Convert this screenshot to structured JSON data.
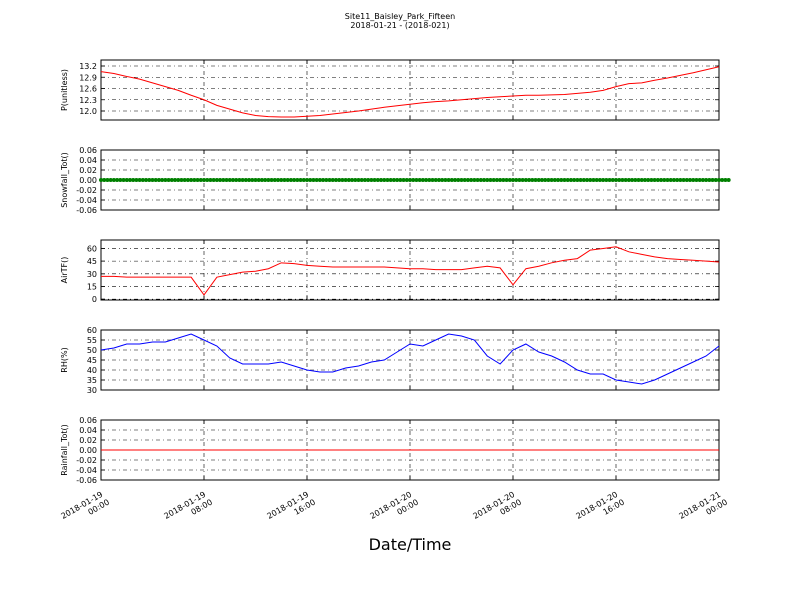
{
  "chart_data": [
    {
      "type": "line",
      "title": "Site11_Baisley_Park_Fifteen",
      "subtitle": "2018-01-21 - (2018-021)",
      "ylabel": "P(unitless)",
      "xlim": [
        "2018-01-19 00:00",
        "2018-01-21 00:00"
      ],
      "xticks": [
        "2018-01-19 00:00",
        "2018-01-19 08:00",
        "2018-01-19 16:00",
        "2018-01-20 00:00",
        "2018-01-20 08:00",
        "2018-01-20 16:00",
        "2018-01-21 00:00"
      ],
      "ylim": [
        11.76,
        13.36
      ],
      "yticks": [
        {
          "value": 12,
          "label": "12.0"
        },
        12.3,
        12.6,
        12.9,
        13.2
      ],
      "grid": true,
      "x": [
        "2018-01-19 00:00",
        "2018-01-19 01:00",
        "2018-01-19 02:00",
        "2018-01-19 03:00",
        "2018-01-19 04:00",
        "2018-01-19 05:00",
        "2018-01-19 06:00",
        "2018-01-19 07:00",
        "2018-01-19 08:00",
        "2018-01-19 09:00",
        "2018-01-19 10:00",
        "2018-01-19 11:00",
        "2018-01-19 12:00",
        "2018-01-19 13:00",
        "2018-01-19 14:00",
        "2018-01-19 15:00",
        "2018-01-19 16:00",
        "2018-01-19 17:00",
        "2018-01-19 18:00",
        "2018-01-19 19:00",
        "2018-01-19 20:00",
        "2018-01-19 21:00",
        "2018-01-19 22:00",
        "2018-01-19 23:00",
        "2018-01-20 00:00",
        "2018-01-20 01:00",
        "2018-01-20 02:00",
        "2018-01-20 03:00",
        "2018-01-20 04:00",
        "2018-01-20 05:00",
        "2018-01-20 06:00",
        "2018-01-20 07:00",
        "2018-01-20 08:00",
        "2018-01-20 09:00",
        "2018-01-20 10:00",
        "2018-01-20 11:00",
        "2018-01-20 12:00",
        "2018-01-20 13:00",
        "2018-01-20 14:00",
        "2018-01-20 15:00",
        "2018-01-20 16:00",
        "2018-01-20 17:00",
        "2018-01-20 18:00",
        "2018-01-20 19:00",
        "2018-01-20 20:00",
        "2018-01-20 21:00",
        "2018-01-20 22:00",
        "2018-01-20 23:00",
        "2018-01-21 00:00"
      ],
      "series": [
        {
          "color": "#ff0000",
          "values": [
            13.05,
            13.0,
            12.92,
            12.85,
            12.75,
            12.65,
            12.55,
            12.42,
            12.3,
            12.15,
            12.05,
            11.95,
            11.88,
            11.85,
            11.84,
            11.84,
            11.86,
            11.88,
            11.92,
            11.96,
            12.0,
            12.05,
            12.1,
            12.14,
            12.18,
            12.22,
            12.25,
            12.27,
            12.3,
            12.33,
            12.36,
            12.38,
            12.4,
            12.42,
            12.42,
            12.43,
            12.44,
            12.47,
            12.5,
            12.55,
            12.65,
            12.73,
            12.75,
            12.82,
            12.88,
            12.95,
            13.02,
            13.1,
            13.18
          ]
        }
      ]
    },
    {
      "type": "line",
      "ylabel": "Snowfall_Tot()",
      "xlim": [
        "2018-01-19 00:00",
        "2018-01-21 00:00"
      ],
      "xticks": [
        "2018-01-19 00:00",
        "2018-01-19 08:00",
        "2018-01-19 16:00",
        "2018-01-20 00:00",
        "2018-01-20 08:00",
        "2018-01-20 16:00",
        "2018-01-21 00:00"
      ],
      "ylim": [
        -0.06,
        0.06
      ],
      "yticks": [
        -0.06,
        -0.04,
        -0.02,
        {
          "value": 0,
          "label": "0.00"
        },
        0.02,
        0.04,
        0.06
      ],
      "grid": true,
      "x": [
        "2018-01-19 00:00",
        "2018-01-19 01:00",
        "2018-01-19 02:00",
        "2018-01-19 03:00",
        "2018-01-19 04:00",
        "2018-01-19 05:00",
        "2018-01-19 06:00",
        "2018-01-19 07:00",
        "2018-01-19 08:00",
        "2018-01-19 09:00",
        "2018-01-19 10:00",
        "2018-01-19 11:00",
        "2018-01-19 12:00",
        "2018-01-19 13:00",
        "2018-01-19 14:00",
        "2018-01-19 15:00",
        "2018-01-19 16:00",
        "2018-01-19 17:00",
        "2018-01-19 18:00",
        "2018-01-19 19:00",
        "2018-01-19 20:00",
        "2018-01-19 21:00",
        "2018-01-19 22:00",
        "2018-01-19 23:00",
        "2018-01-20 00:00",
        "2018-01-20 01:00",
        "2018-01-20 02:00",
        "2018-01-20 03:00",
        "2018-01-20 04:00",
        "2018-01-20 05:00",
        "2018-01-20 06:00",
        "2018-01-20 07:00",
        "2018-01-20 08:00",
        "2018-01-20 09:00",
        "2018-01-20 10:00",
        "2018-01-20 11:00",
        "2018-01-20 12:00",
        "2018-01-20 13:00",
        "2018-01-20 14:00",
        "2018-01-20 15:00",
        "2018-01-20 16:00",
        "2018-01-20 17:00",
        "2018-01-20 18:00",
        "2018-01-20 19:00",
        "2018-01-20 20:00",
        "2018-01-20 21:00",
        "2018-01-20 22:00",
        "2018-01-20 23:00",
        "2018-01-21 00:00"
      ],
      "series": [
        {
          "color": "#008000",
          "marker": true,
          "values": [
            0,
            0,
            0,
            0,
            0,
            0,
            0,
            0,
            0,
            0,
            0,
            0,
            0,
            0,
            0,
            0,
            0,
            0,
            0,
            0,
            0,
            0,
            0,
            0,
            0,
            0,
            0,
            0,
            0,
            0,
            0,
            0,
            0,
            0,
            0,
            0,
            0,
            0,
            0,
            0,
            0,
            0,
            0,
            0,
            0,
            0,
            0,
            0,
            0
          ]
        }
      ]
    },
    {
      "type": "line",
      "ylabel": "AirTF()",
      "xlim": [
        "2018-01-19 00:00",
        "2018-01-21 00:00"
      ],
      "xticks": [
        "2018-01-19 00:00",
        "2018-01-19 08:00",
        "2018-01-19 16:00",
        "2018-01-20 00:00",
        "2018-01-20 08:00",
        "2018-01-20 16:00",
        "2018-01-21 00:00"
      ],
      "ylim": [
        -1,
        70
      ],
      "yticks": [
        0,
        15,
        30,
        45,
        60
      ],
      "grid": true,
      "x": [
        "2018-01-19 00:00",
        "2018-01-19 01:00",
        "2018-01-19 02:00",
        "2018-01-19 03:00",
        "2018-01-19 04:00",
        "2018-01-19 05:00",
        "2018-01-19 06:00",
        "2018-01-19 07:00",
        "2018-01-19 08:00",
        "2018-01-19 09:00",
        "2018-01-19 10:00",
        "2018-01-19 11:00",
        "2018-01-19 12:00",
        "2018-01-19 13:00",
        "2018-01-19 14:00",
        "2018-01-19 15:00",
        "2018-01-19 16:00",
        "2018-01-19 17:00",
        "2018-01-19 18:00",
        "2018-01-19 19:00",
        "2018-01-19 20:00",
        "2018-01-19 21:00",
        "2018-01-19 22:00",
        "2018-01-19 23:00",
        "2018-01-20 00:00",
        "2018-01-20 01:00",
        "2018-01-20 02:00",
        "2018-01-20 03:00",
        "2018-01-20 04:00",
        "2018-01-20 05:00",
        "2018-01-20 06:00",
        "2018-01-20 07:00",
        "2018-01-20 08:00",
        "2018-01-20 09:00",
        "2018-01-20 10:00",
        "2018-01-20 11:00",
        "2018-01-20 12:00",
        "2018-01-20 13:00",
        "2018-01-20 14:00",
        "2018-01-20 15:00",
        "2018-01-20 16:00",
        "2018-01-20 17:00",
        "2018-01-20 18:00",
        "2018-01-20 19:00",
        "2018-01-20 20:00",
        "2018-01-20 21:00",
        "2018-01-20 22:00",
        "2018-01-20 23:00",
        "2018-01-21 00:00"
      ],
      "series": [
        {
          "color": "#ff0000",
          "values": [
            27,
            27,
            26,
            26,
            26,
            26,
            26,
            26,
            5,
            26,
            29,
            32,
            33,
            36,
            43,
            42,
            40,
            39,
            38,
            38,
            38,
            38,
            38,
            37,
            36,
            36,
            35,
            35,
            35,
            37,
            39,
            37,
            17,
            36,
            39,
            43,
            46,
            48,
            58,
            60,
            62,
            56,
            53,
            50,
            48,
            47,
            46,
            45,
            44
          ]
        }
      ]
    },
    {
      "type": "line",
      "ylabel": "RH(%)",
      "xlim": [
        "2018-01-19 00:00",
        "2018-01-21 00:00"
      ],
      "xticks": [
        "2018-01-19 00:00",
        "2018-01-19 08:00",
        "2018-01-19 16:00",
        "2018-01-20 00:00",
        "2018-01-20 08:00",
        "2018-01-20 16:00",
        "2018-01-21 00:00"
      ],
      "ylim": [
        30,
        60
      ],
      "yticks": [
        30,
        35,
        40,
        45,
        50,
        55,
        60
      ],
      "grid": true,
      "x": [
        "2018-01-19 00:00",
        "2018-01-19 01:00",
        "2018-01-19 02:00",
        "2018-01-19 03:00",
        "2018-01-19 04:00",
        "2018-01-19 05:00",
        "2018-01-19 06:00",
        "2018-01-19 07:00",
        "2018-01-19 08:00",
        "2018-01-19 09:00",
        "2018-01-19 10:00",
        "2018-01-19 11:00",
        "2018-01-19 12:00",
        "2018-01-19 13:00",
        "2018-01-19 14:00",
        "2018-01-19 15:00",
        "2018-01-19 16:00",
        "2018-01-19 17:00",
        "2018-01-19 18:00",
        "2018-01-19 19:00",
        "2018-01-19 20:00",
        "2018-01-19 21:00",
        "2018-01-19 22:00",
        "2018-01-19 23:00",
        "2018-01-20 00:00",
        "2018-01-20 01:00",
        "2018-01-20 02:00",
        "2018-01-20 03:00",
        "2018-01-20 04:00",
        "2018-01-20 05:00",
        "2018-01-20 06:00",
        "2018-01-20 07:00",
        "2018-01-20 08:00",
        "2018-01-20 09:00",
        "2018-01-20 10:00",
        "2018-01-20 11:00",
        "2018-01-20 12:00",
        "2018-01-20 13:00",
        "2018-01-20 14:00",
        "2018-01-20 15:00",
        "2018-01-20 16:00",
        "2018-01-20 17:00",
        "2018-01-20 18:00",
        "2018-01-20 19:00",
        "2018-01-20 20:00",
        "2018-01-20 21:00",
        "2018-01-20 22:00",
        "2018-01-20 23:00",
        "2018-01-21 00:00"
      ],
      "series": [
        {
          "color": "#0000ff",
          "values": [
            50,
            51,
            53,
            53,
            54,
            54,
            56,
            58,
            55,
            52,
            46,
            43,
            43,
            43,
            44,
            42,
            40,
            39,
            39,
            41,
            42,
            44,
            45,
            49,
            53,
            52,
            55,
            58,
            57,
            55,
            47,
            43,
            50,
            53,
            49,
            47,
            44,
            40,
            38,
            38,
            35,
            34,
            33,
            35,
            38,
            41,
            44,
            47,
            52
          ]
        }
      ]
    },
    {
      "type": "line",
      "ylabel": "Rainfall_Tot()",
      "xlabel": "Date/Time",
      "xlim": [
        "2018-01-19 00:00",
        "2018-01-21 00:00"
      ],
      "xticks": [
        "2018-01-19 00:00",
        "2018-01-19 08:00",
        "2018-01-19 16:00",
        "2018-01-20 00:00",
        "2018-01-20 08:00",
        "2018-01-20 16:00",
        "2018-01-21 00:00"
      ],
      "ylim": [
        -0.06,
        0.06
      ],
      "yticks": [
        -0.06,
        -0.04,
        -0.02,
        {
          "value": 0,
          "label": "0.00"
        },
        0.02,
        0.04,
        0.06
      ],
      "grid": true,
      "x": [
        "2018-01-19 00:00",
        "2018-01-19 01:00",
        "2018-01-19 02:00",
        "2018-01-19 03:00",
        "2018-01-19 04:00",
        "2018-01-19 05:00",
        "2018-01-19 06:00",
        "2018-01-19 07:00",
        "2018-01-19 08:00",
        "2018-01-19 09:00",
        "2018-01-19 10:00",
        "2018-01-19 11:00",
        "2018-01-19 12:00",
        "2018-01-19 13:00",
        "2018-01-19 14:00",
        "2018-01-19 15:00",
        "2018-01-19 16:00",
        "2018-01-19 17:00",
        "2018-01-19 18:00",
        "2018-01-19 19:00",
        "2018-01-19 20:00",
        "2018-01-19 21:00",
        "2018-01-19 22:00",
        "2018-01-19 23:00",
        "2018-01-20 00:00",
        "2018-01-20 01:00",
        "2018-01-20 02:00",
        "2018-01-20 03:00",
        "2018-01-20 04:00",
        "2018-01-20 05:00",
        "2018-01-20 06:00",
        "2018-01-20 07:00",
        "2018-01-20 08:00",
        "2018-01-20 09:00",
        "2018-01-20 10:00",
        "2018-01-20 11:00",
        "2018-01-20 12:00",
        "2018-01-20 13:00",
        "2018-01-20 14:00",
        "2018-01-20 15:00",
        "2018-01-20 16:00",
        "2018-01-20 17:00",
        "2018-01-20 18:00",
        "2018-01-20 19:00",
        "2018-01-20 20:00",
        "2018-01-20 21:00",
        "2018-01-20 22:00",
        "2018-01-20 23:00",
        "2018-01-21 00:00"
      ],
      "series": [
        {
          "color": "#ff0000",
          "values": [
            0,
            0,
            0,
            0,
            0,
            0,
            0,
            0,
            0,
            0,
            0,
            0,
            0,
            0,
            0,
            0,
            0,
            0,
            0,
            0,
            0,
            0,
            0,
            0,
            0,
            0,
            0,
            0,
            0,
            0,
            0,
            0,
            0,
            0,
            0,
            0,
            0,
            0,
            0,
            0,
            0,
            0,
            0,
            0,
            0,
            0,
            0,
            0,
            0
          ]
        }
      ]
    }
  ]
}
